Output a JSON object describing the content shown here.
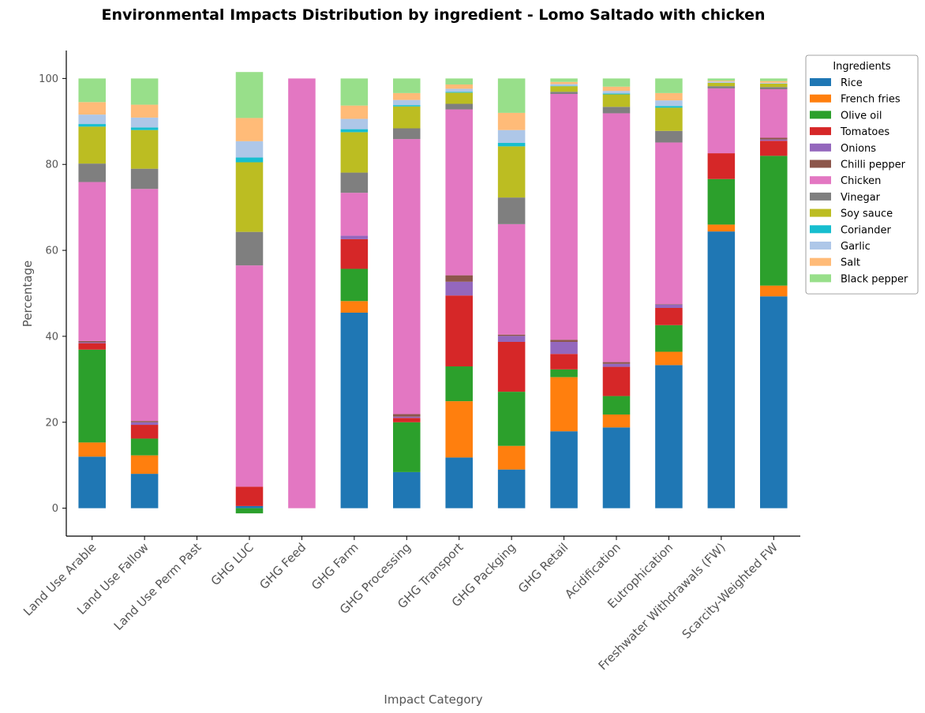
{
  "chart_data": {
    "type": "bar",
    "stacked": true,
    "title": "Environmental Impacts Distribution by ingredient - Lomo Saltado with chicken",
    "xlabel": "Impact Category",
    "ylabel": "Percentage",
    "ylim": [
      -6.5,
      106.5
    ],
    "yticks": [
      0,
      20,
      40,
      60,
      80,
      100
    ],
    "grid": false,
    "legend": {
      "title": "Ingredients",
      "placement": "upper-right-outside"
    },
    "categories": [
      "Land Use Arable",
      "Land Use Fallow",
      "Land Use Perm Past",
      "GHG LUC",
      "GHG Feed",
      "GHG Farm",
      "GHG Processing",
      "GHG Transport",
      "GHG Packging",
      "GHG Retail",
      "Acidification",
      "Eutrophication",
      "Freshwater Withdrawals (FW)",
      "Scarcity-Weighted FW"
    ],
    "series": [
      {
        "name": "Rice",
        "color": "#1f77b4",
        "values": [
          12.0,
          8.0,
          0,
          0.5,
          0,
          45.5,
          8.4,
          11.8,
          9.0,
          17.9,
          18.8,
          33.3,
          64.4,
          49.3
        ]
      },
      {
        "name": "French fries",
        "color": "#ff7f0e",
        "values": [
          3.3,
          4.3,
          0,
          0,
          0,
          2.7,
          0,
          13.1,
          5.5,
          12.6,
          3.0,
          3.1,
          1.6,
          2.5
        ]
      },
      {
        "name": "Olive oil",
        "color": "#2ca02c",
        "values": [
          21.6,
          3.9,
          0,
          -1.2,
          0,
          7.5,
          11.6,
          8.1,
          12.6,
          1.8,
          4.3,
          6.2,
          10.6,
          30.2
        ]
      },
      {
        "name": "Tomatoes",
        "color": "#d62728",
        "values": [
          1.5,
          3.2,
          0,
          4.5,
          0,
          6.9,
          1.0,
          16.5,
          11.6,
          3.6,
          6.8,
          4.0,
          6.0,
          3.5
        ]
      },
      {
        "name": "Onions",
        "color": "#9467bd",
        "values": [
          0.2,
          0.6,
          0,
          0,
          0,
          0.8,
          0.3,
          3.2,
          1.4,
          2.8,
          0.7,
          0.8,
          0,
          0.3
        ]
      },
      {
        "name": "Chilli pepper",
        "color": "#8c564b",
        "values": [
          0.3,
          0.3,
          0,
          0,
          0,
          0,
          0.6,
          1.5,
          0.3,
          0.5,
          0.4,
          0.1,
          0,
          0.4
        ]
      },
      {
        "name": "Chicken",
        "color": "#e377c2",
        "values": [
          37.0,
          54.0,
          0,
          51.5,
          100.0,
          10.0,
          64.0,
          38.6,
          25.7,
          57.2,
          57.9,
          37.6,
          15.1,
          11.3
        ]
      },
      {
        "name": "Vinegar",
        "color": "#7f7f7f",
        "values": [
          4.3,
          4.7,
          0,
          7.8,
          0,
          4.7,
          2.5,
          1.3,
          6.2,
          0.5,
          1.5,
          2.7,
          0.5,
          0.5
        ]
      },
      {
        "name": "Soy sauce",
        "color": "#bcbd22",
        "values": [
          8.6,
          9.0,
          0,
          16.2,
          0,
          9.4,
          5.1,
          2.6,
          11.9,
          1.3,
          2.9,
          5.4,
          0.8,
          0.8
        ]
      },
      {
        "name": "Coriander",
        "color": "#17becf",
        "values": [
          0.6,
          0.6,
          0,
          1.1,
          0,
          0.7,
          0.3,
          0.2,
          0.8,
          0.1,
          0.2,
          0.4,
          0,
          0
        ]
      },
      {
        "name": "Garlic",
        "color": "#aec7e8",
        "values": [
          2.2,
          2.3,
          0,
          3.8,
          0,
          2.4,
          1.2,
          0.7,
          3.0,
          0.4,
          0.6,
          1.3,
          0.3,
          0.2
        ]
      },
      {
        "name": "Salt",
        "color": "#ffbb78",
        "values": [
          2.9,
          3.0,
          0,
          5.4,
          0,
          3.1,
          1.6,
          1.0,
          4.0,
          0.5,
          1.0,
          1.7,
          0.2,
          0.4
        ]
      },
      {
        "name": "Black pepper",
        "color": "#98df8a",
        "values": [
          5.5,
          6.1,
          0,
          10.7,
          0,
          6.3,
          3.4,
          1.4,
          8.0,
          0.8,
          1.9,
          3.4,
          0.5,
          0.6
        ]
      }
    ]
  }
}
